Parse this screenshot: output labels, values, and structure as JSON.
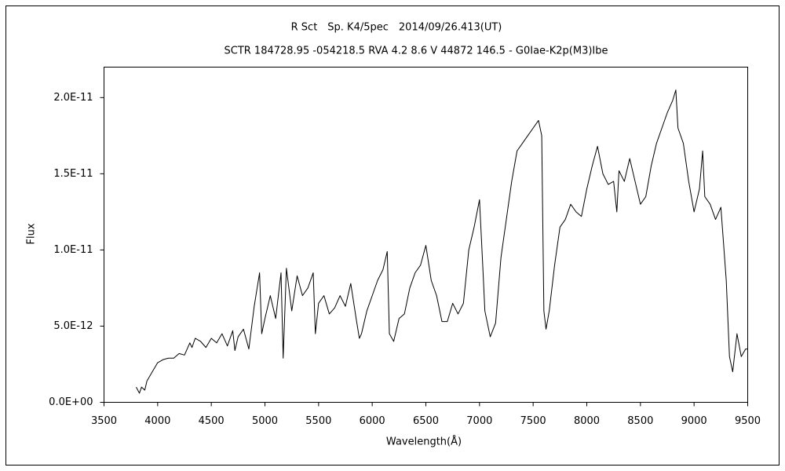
{
  "chart_data": {
    "type": "line",
    "title": "R Sct　Sp. K4/5pec　2014/09/26.413(UT)",
    "subtitle": "SCTR 184728.95 -054218.5 RVA 4.2 8.6 V 44872 146.5 - G0Iae-K2p(M3)Ibe",
    "x_label": "Wavelength(Å)",
    "y_label": "Flux",
    "xlim": [
      3500,
      9500
    ],
    "xticks": [
      3500,
      4000,
      4500,
      5000,
      5500,
      6000,
      6500,
      7000,
      7500,
      8000,
      8500,
      9000,
      9500
    ],
    "ylim": [
      0,
      2.2e-11
    ],
    "yticks": [
      {
        "value": 0,
        "label": "0.0E+00"
      },
      {
        "value": 5e-12,
        "label": "5.0E-12"
      },
      {
        "value": 1e-11,
        "label": "1.0E-11"
      },
      {
        "value": 1.5e-11,
        "label": "1.5E-11"
      },
      {
        "value": 2e-11,
        "label": "2.0E-11"
      }
    ],
    "grid": false,
    "x": [
      3800,
      3830,
      3850,
      3880,
      3900,
      3950,
      4000,
      4050,
      4100,
      4150,
      4200,
      4250,
      4300,
      4320,
      4350,
      4400,
      4450,
      4500,
      4550,
      4600,
      4650,
      4700,
      4720,
      4750,
      4800,
      4850,
      4900,
      4950,
      4970,
      5000,
      5050,
      5100,
      5150,
      5170,
      5200,
      5250,
      5300,
      5350,
      5400,
      5450,
      5470,
      5500,
      5550,
      5600,
      5650,
      5700,
      5750,
      5800,
      5850,
      5880,
      5900,
      5950,
      6000,
      6050,
      6100,
      6140,
      6160,
      6200,
      6250,
      6300,
      6350,
      6400,
      6450,
      6500,
      6550,
      6600,
      6650,
      6700,
      6750,
      6800,
      6850,
      6900,
      6950,
      7000,
      7030,
      7050,
      7100,
      7150,
      7200,
      7250,
      7300,
      7350,
      7400,
      7450,
      7500,
      7550,
      7580,
      7600,
      7620,
      7650,
      7700,
      7750,
      7800,
      7850,
      7900,
      7950,
      8000,
      8050,
      8100,
      8150,
      8200,
      8250,
      8280,
      8300,
      8350,
      8400,
      8450,
      8500,
      8550,
      8600,
      8650,
      8700,
      8750,
      8800,
      8830,
      8850,
      8900,
      8950,
      9000,
      9050,
      9080,
      9100,
      9150,
      9200,
      9250,
      9300,
      9330,
      9360,
      9400,
      9440,
      9480,
      9500
    ],
    "series": [
      {
        "name": "Flux",
        "color": "#000000",
        "values": [
          1e-12,
          6e-13,
          1e-12,
          8e-13,
          1.4e-12,
          2e-12,
          2.6e-12,
          2.8e-12,
          2.9e-12,
          2.9e-12,
          3.2e-12,
          3.1e-12,
          3.9e-12,
          3.6e-12,
          4.2e-12,
          4e-12,
          3.6e-12,
          4.2e-12,
          3.9e-12,
          4.5e-12,
          3.7e-12,
          4.7e-12,
          3.4e-12,
          4.3e-12,
          4.8e-12,
          3.5e-12,
          6.3e-12,
          8.5e-12,
          4.5e-12,
          5.5e-12,
          7e-12,
          5.5e-12,
          8.5e-12,
          2.9e-12,
          8.8e-12,
          6e-12,
          8.3e-12,
          7e-12,
          7.5e-12,
          8.5e-12,
          4.5e-12,
          6.5e-12,
          7e-12,
          5.8e-12,
          6.2e-12,
          7e-12,
          6.3e-12,
          7.8e-12,
          5.5e-12,
          4.2e-12,
          4.5e-12,
          6e-12,
          7e-12,
          8e-12,
          8.7e-12,
          9.9e-12,
          4.5e-12,
          4e-12,
          5.5e-12,
          5.8e-12,
          7.5e-12,
          8.5e-12,
          9e-12,
          1.03e-11,
          8e-12,
          7e-12,
          5.3e-12,
          5.3e-12,
          6.5e-12,
          5.8e-12,
          6.5e-12,
          1e-11,
          1.15e-11,
          1.33e-11,
          9e-12,
          6e-12,
          4.3e-12,
          5.2e-12,
          9.5e-12,
          1.2e-11,
          1.45e-11,
          1.65e-11,
          1.7e-11,
          1.75e-11,
          1.8e-11,
          1.85e-11,
          1.75e-11,
          6e-12,
          4.8e-12,
          6e-12,
          9e-12,
          1.15e-11,
          1.2e-11,
          1.3e-11,
          1.25e-11,
          1.22e-11,
          1.4e-11,
          1.55e-11,
          1.68e-11,
          1.5e-11,
          1.43e-11,
          1.45e-11,
          1.25e-11,
          1.52e-11,
          1.45e-11,
          1.6e-11,
          1.45e-11,
          1.3e-11,
          1.35e-11,
          1.55e-11,
          1.7e-11,
          1.8e-11,
          1.9e-11,
          1.98e-11,
          2.05e-11,
          1.8e-11,
          1.7e-11,
          1.45e-11,
          1.25e-11,
          1.4e-11,
          1.65e-11,
          1.35e-11,
          1.3e-11,
          1.2e-11,
          1.28e-11,
          8e-12,
          3e-12,
          2e-12,
          4.5e-12,
          3e-12,
          3.5e-12,
          3.5e-12
        ]
      }
    ]
  }
}
